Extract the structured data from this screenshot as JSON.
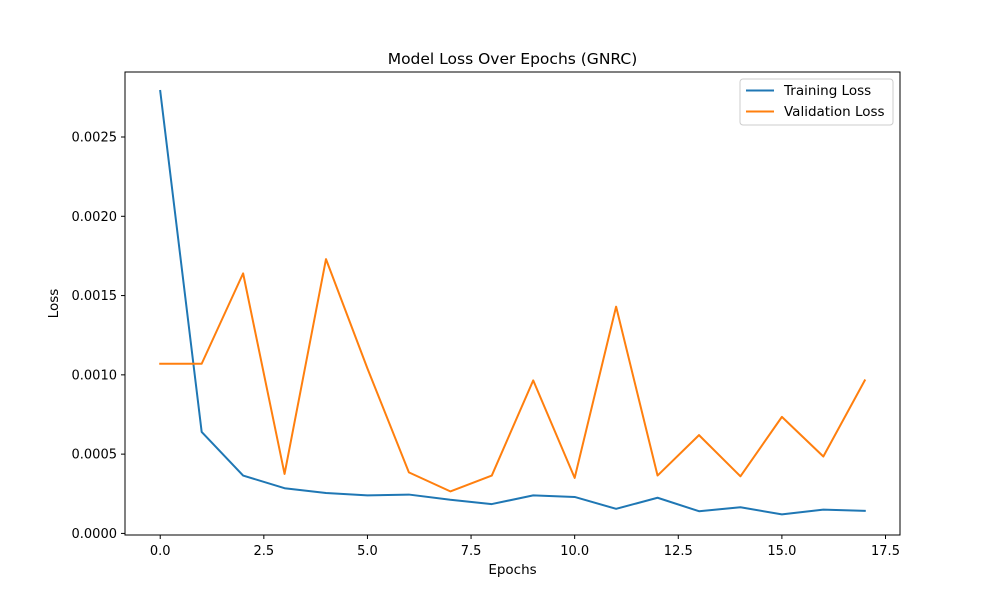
{
  "chart_data": {
    "type": "line",
    "title": "Model Loss Over Epochs (GNRC)",
    "xlabel": "Epochs",
    "ylabel": "Loss",
    "xlim": [
      -0.85,
      17.85
    ],
    "ylim": [
      -1e-05,
      0.00291
    ],
    "x_ticks": [
      0.0,
      2.5,
      5.0,
      7.5,
      10.0,
      12.5,
      15.0,
      17.5
    ],
    "x_tick_labels": [
      "0.0",
      "2.5",
      "5.0",
      "7.5",
      "10.0",
      "12.5",
      "15.0",
      "17.5"
    ],
    "y_ticks": [
      0.0,
      0.0005,
      0.001,
      0.0015,
      0.002,
      0.0025
    ],
    "y_tick_labels": [
      "0.0000",
      "0.0005",
      "0.0010",
      "0.0015",
      "0.0020",
      "0.0025"
    ],
    "grid": false,
    "legend_position": "upper right",
    "x": [
      0,
      1,
      2,
      3,
      4,
      5,
      6,
      7,
      8,
      9,
      10,
      11,
      12,
      13,
      14,
      15,
      16,
      17
    ],
    "series": [
      {
        "name": "Training Loss",
        "color": "#1f77b4",
        "values": [
          0.00279,
          0.00064,
          0.000365,
          0.000285,
          0.000255,
          0.00024,
          0.000245,
          0.000212,
          0.000185,
          0.00024,
          0.00023,
          0.000155,
          0.000225,
          0.00014,
          0.000165,
          0.00012,
          0.00015,
          0.000142
        ]
      },
      {
        "name": "Validation Loss",
        "color": "#ff7f0e",
        "values": [
          0.00107,
          0.00107,
          0.00164,
          0.000375,
          0.00173,
          0.00104,
          0.000385,
          0.000265,
          0.000365,
          0.000965,
          0.00035,
          0.00143,
          0.000365,
          0.00062,
          0.00036,
          0.000735,
          0.000485,
          0.000965
        ]
      }
    ]
  }
}
